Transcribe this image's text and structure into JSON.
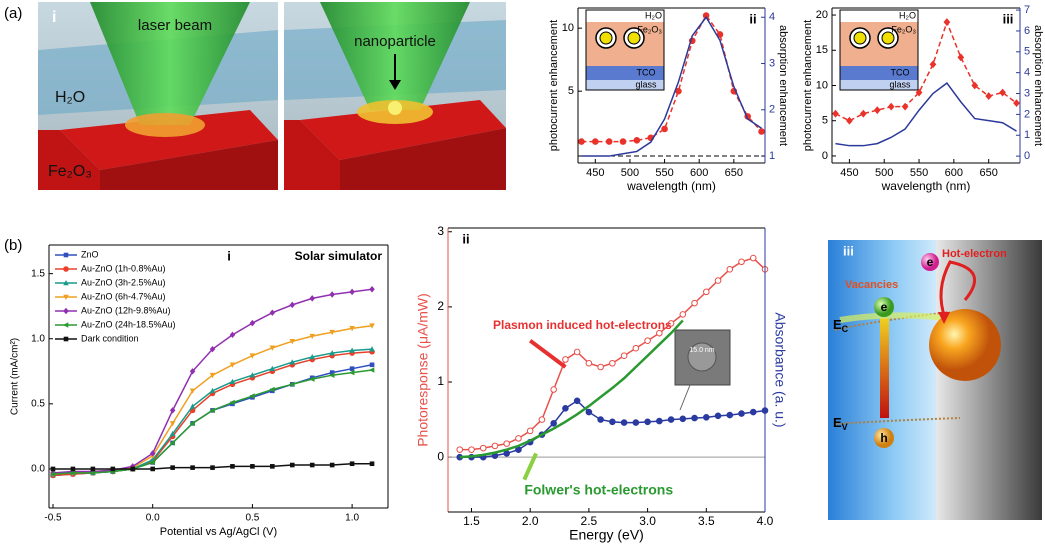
{
  "panel_labels": {
    "a": "(a)",
    "b": "(b)"
  },
  "illustration_a": {
    "label": "i",
    "laser": "laser beam",
    "nanoparticle": "nanoparticle",
    "water": "H₂O",
    "oxide": "Fe₂O₃"
  },
  "chart_data": [
    {
      "type": "line",
      "panel": "ii",
      "xlabel": "wavelength (nm)",
      "ylabel": "photocurrent enhancement",
      "y2label": "absorption enhancement",
      "x": [
        430,
        450,
        470,
        490,
        510,
        530,
        550,
        570,
        590,
        610,
        630,
        650,
        670,
        690
      ],
      "xlim": [
        425,
        695
      ],
      "xticks": [
        450,
        500,
        550,
        600,
        650
      ],
      "ylim": [
        -0.7,
        11.6
      ],
      "yticks": [
        5,
        10
      ],
      "y2lim": [
        0.85,
        4.2
      ],
      "y2ticks": [
        1,
        2,
        3,
        4
      ],
      "hline": {
        "value": 1,
        "axis": "y2"
      },
      "inset": [
        "H₂O",
        "Fe₂O₃",
        "TCO",
        "glass"
      ],
      "series": [
        {
          "color": "#e8322a",
          "style": "dashed",
          "marker": "circle",
          "values": [
            1,
            1,
            1,
            1,
            1.1,
            1.3,
            2,
            5,
            9,
            11,
            9.5,
            5,
            3,
            1.8
          ]
        },
        {
          "color": "#2b3a9a",
          "axis": "y2",
          "values": [
            1,
            1,
            1,
            1.05,
            1.1,
            1.3,
            1.8,
            2.6,
            3.6,
            4.0,
            3.5,
            2.5,
            1.8,
            1.6
          ]
        }
      ]
    },
    {
      "type": "line",
      "panel": "iii",
      "xlabel": "wavelength (nm)",
      "ylabel": "photocurrent enhancement",
      "y2label": "absorption enhancement",
      "x": [
        430,
        450,
        470,
        490,
        510,
        530,
        550,
        570,
        590,
        610,
        630,
        650,
        670,
        690
      ],
      "xlim": [
        425,
        695
      ],
      "xticks": [
        450,
        500,
        550,
        600,
        650
      ],
      "ylim": [
        -1,
        21
      ],
      "yticks": [
        0,
        5,
        10,
        15,
        20
      ],
      "y2lim": [
        -0.33,
        7.1
      ],
      "y2ticks": [
        0,
        1,
        2,
        3,
        4,
        5,
        6,
        7
      ],
      "inset": [
        "H₂O",
        "Fe₂O₃",
        "TCO",
        "glass"
      ],
      "series": [
        {
          "color": "#e8322a",
          "style": "dashed",
          "marker": "diamond",
          "values": [
            6,
            5,
            6,
            6.5,
            7,
            7,
            9,
            13,
            19,
            14,
            10,
            8.5,
            9,
            7.5
          ]
        },
        {
          "color": "#2b3a9a",
          "axis": "y2",
          "values": [
            0.6,
            0.5,
            0.5,
            0.6,
            0.9,
            1.3,
            2.2,
            3.0,
            3.5,
            2.6,
            1.8,
            1.7,
            1.6,
            1.2
          ]
        }
      ]
    },
    {
      "type": "line",
      "panel": "i",
      "annotation": "Solar simulator",
      "xlabel": "Potential vs Ag/AgCl (V)",
      "ylabel": "Current (mA/cm²)",
      "x": [
        -0.5,
        -0.4,
        -0.3,
        -0.2,
        -0.1,
        0,
        0.1,
        0.2,
        0.3,
        0.4,
        0.5,
        0.6,
        0.7,
        0.8,
        0.9,
        1.0,
        1.1
      ],
      "xlim": [
        -0.52,
        1.18
      ],
      "xticks": [
        -0.5,
        {
          "value": 0,
          "label": "0.0"
        },
        0.5,
        {
          "value": 1,
          "label": "1.0"
        }
      ],
      "ylim": [
        -0.3,
        1.72
      ],
      "yticks": [
        {
          "value": 0,
          "label": "0.0"
        },
        0.5,
        {
          "value": 1,
          "label": "1.0"
        },
        1.5
      ],
      "legend": "upper-left",
      "series": [
        {
          "name": "ZnO",
          "color": "#3050c0",
          "marker": "square",
          "values": [
            -0.05,
            -0.04,
            -0.03,
            -0.02,
            0.0,
            0.05,
            0.2,
            0.35,
            0.45,
            0.5,
            0.55,
            0.6,
            0.65,
            0.7,
            0.74,
            0.77,
            0.8
          ]
        },
        {
          "name": "Au-ZnO (1h-0.8%Au)",
          "color": "#e8402a",
          "marker": "circle",
          "values": [
            -0.05,
            -0.04,
            -0.03,
            -0.02,
            0.0,
            0.06,
            0.25,
            0.45,
            0.58,
            0.65,
            0.7,
            0.75,
            0.8,
            0.84,
            0.87,
            0.89,
            0.9
          ]
        },
        {
          "name": "Au-ZnO (3h-2.5%Au)",
          "color": "#1a9a8a",
          "marker": "triangle",
          "values": [
            -0.04,
            -0.03,
            -0.03,
            -0.02,
            0.0,
            0.07,
            0.27,
            0.48,
            0.6,
            0.67,
            0.72,
            0.77,
            0.82,
            0.86,
            0.89,
            0.91,
            0.92
          ]
        },
        {
          "name": "Au-ZnO (6h-4.7%Au)",
          "color": "#f0a020",
          "marker": "triangle-down",
          "values": [
            -0.04,
            -0.03,
            -0.02,
            -0.01,
            0.01,
            0.1,
            0.35,
            0.6,
            0.72,
            0.8,
            0.87,
            0.93,
            0.98,
            1.02,
            1.05,
            1.08,
            1.1
          ]
        },
        {
          "name": "Au-ZnO (12h-9.8%Au)",
          "color": "#9030b0",
          "marker": "diamond",
          "values": [
            -0.03,
            -0.02,
            -0.02,
            -0.01,
            0.02,
            0.12,
            0.45,
            0.75,
            0.92,
            1.03,
            1.12,
            1.2,
            1.26,
            1.31,
            1.34,
            1.36,
            1.38
          ]
        },
        {
          "name": "Au-ZnO (24h-18.5%Au)",
          "color": "#2a9a30",
          "marker": "triangle-left",
          "values": [
            -0.04,
            -0.03,
            -0.03,
            -0.02,
            0,
            0.05,
            0.2,
            0.35,
            0.45,
            0.51,
            0.56,
            0.61,
            0.65,
            0.69,
            0.72,
            0.74,
            0.76
          ]
        },
        {
          "name": "Dark condition",
          "color": "#111111",
          "marker": "square",
          "values": [
            0,
            0,
            0,
            0,
            0,
            0,
            0.01,
            0.01,
            0.01,
            0.02,
            0.02,
            0.02,
            0.03,
            0.03,
            0.03,
            0.04,
            0.04
          ]
        }
      ]
    },
    {
      "type": "line",
      "panel": "ii",
      "xlabel": "Energy (eV)",
      "ylabel": "Photoresponse (μA/mW)",
      "y2label": "Absorbance (a. u.)",
      "annotations": [
        "Plasmon induced hot-electrons",
        "Folwer's hot-electrons"
      ],
      "inset_text": "15.0 nm",
      "x": [
        1.4,
        1.5,
        1.6,
        1.7,
        1.8,
        1.9,
        2.0,
        2.1,
        2.2,
        2.3,
        2.4,
        2.5,
        2.6,
        2.7,
        2.8,
        2.9,
        3.0,
        3.1,
        3.2,
        3.3,
        3.4,
        3.5,
        3.6,
        3.7,
        3.8,
        3.9,
        4.0
      ],
      "xlim": [
        1.3,
        4.0
      ],
      "xticks": [
        1.5,
        {
          "value": 2,
          "label": "2.0"
        },
        2.5,
        {
          "value": 3,
          "label": "3.0"
        },
        3.5,
        {
          "value": 4,
          "label": "4.0"
        }
      ],
      "ylim": [
        -0.73,
        3.05
      ],
      "yticks": [
        0,
        1,
        2,
        3
      ],
      "y2lim": [
        -0.73,
        3.05
      ],
      "series": [
        {
          "color": "#e8504a",
          "marker": "open-circle",
          "values": [
            0.1,
            0.1,
            0.12,
            0.15,
            0.18,
            0.25,
            0.35,
            0.5,
            0.9,
            1.3,
            1.4,
            1.25,
            1.2,
            1.25,
            1.35,
            1.45,
            1.55,
            1.65,
            1.78,
            1.9,
            2.05,
            2.2,
            2.35,
            2.5,
            2.6,
            2.65,
            2.5
          ]
        },
        {
          "color": "#2a3aa0",
          "marker": "circle",
          "axis": "y2",
          "values": [
            0,
            0,
            0,
            0.02,
            0.05,
            0.1,
            0.2,
            0.3,
            0.45,
            0.65,
            0.75,
            0.6,
            0.5,
            0.47,
            0.46,
            0.46,
            0.47,
            0.48,
            0.5,
            0.51,
            0.52,
            0.53,
            0.55,
            0.56,
            0.58,
            0.6,
            0.62
          ]
        },
        {
          "color": "#2a9a30",
          "values": [
            0,
            0.01,
            0.03,
            0.06,
            0.1,
            0.15,
            0.22,
            0.3,
            0.38,
            0.47,
            0.57,
            0.68,
            0.8,
            0.92,
            1.05,
            1.2,
            1.35,
            1.5,
            1.65,
            1.82,
            null,
            null,
            null,
            null,
            null,
            null,
            null
          ]
        }
      ]
    }
  ],
  "illustration_b": {
    "label": "iii",
    "hot_electron": "Hot-electron",
    "vacancies": "Vacancies",
    "conduction": {
      "main": "E",
      "sub": "C"
    },
    "valence": {
      "main": "E",
      "sub": "V"
    },
    "electron_top": "e",
    "electron": "e",
    "hole": "h"
  }
}
